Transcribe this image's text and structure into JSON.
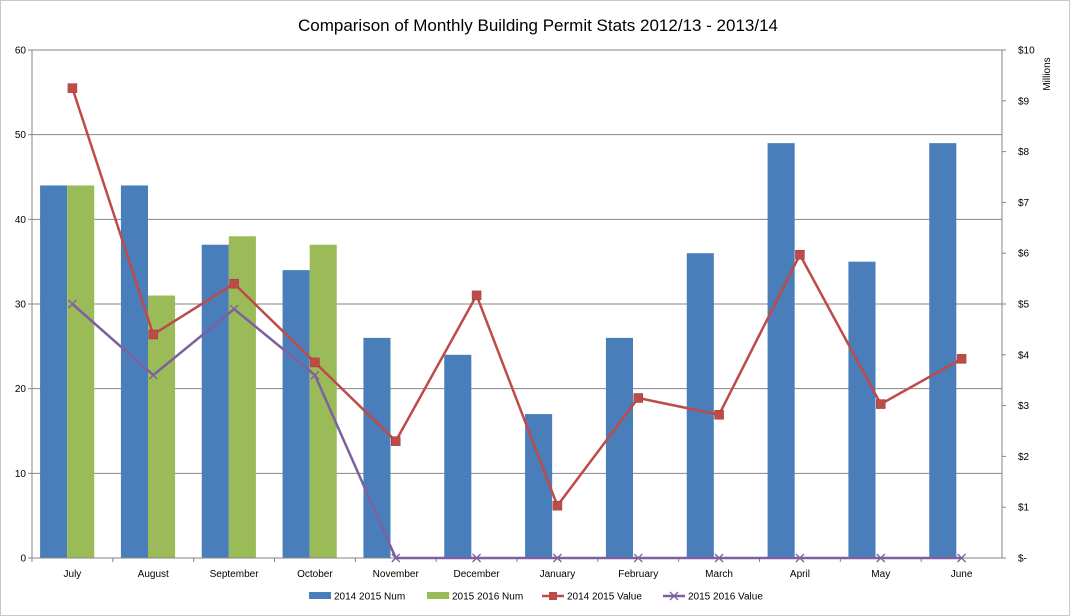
{
  "chart_data": {
    "type": "bar",
    "title": "Comparison of Monthly Building Permit Stats 2012/13 - 2013/14",
    "categories": [
      "July",
      "August",
      "September",
      "October",
      "November",
      "December",
      "January",
      "February",
      "March",
      "April",
      "May",
      "June"
    ],
    "y_left": {
      "ylim": [
        0,
        60
      ],
      "ticks": [
        0,
        10,
        20,
        30,
        40,
        50,
        60
      ],
      "tick_labels": [
        "0",
        "10",
        "20",
        "30",
        "40",
        "50",
        "60"
      ]
    },
    "y_right": {
      "label": "Millions",
      "ylim": [
        0,
        10
      ],
      "ticks": [
        0,
        1,
        2,
        3,
        4,
        5,
        6,
        7,
        8,
        9,
        10
      ],
      "tick_labels": [
        "$-",
        "$1",
        "$2",
        "$3",
        "$4",
        "$5",
        "$6",
        "$7",
        "$8",
        "$9",
        "$10"
      ]
    },
    "grid": true,
    "legend_position": "bottom",
    "series": [
      {
        "name": "2014 2015 Num",
        "kind": "bar",
        "axis": "left",
        "color": "#4a7ebb",
        "values": [
          44,
          44,
          37,
          34,
          26,
          24,
          17,
          26,
          36,
          49,
          35,
          49
        ]
      },
      {
        "name": "2015 2016 Num",
        "kind": "bar",
        "axis": "left",
        "color": "#9bbb59",
        "values": [
          44,
          31,
          38,
          37,
          null,
          null,
          null,
          null,
          null,
          null,
          null,
          null
        ]
      },
      {
        "name": "2014 2015 Value",
        "kind": "line",
        "marker": "square",
        "axis": "right",
        "color": "#be4b48",
        "values": [
          9.25,
          4.4,
          5.4,
          3.85,
          2.3,
          5.17,
          1.03,
          3.15,
          2.82,
          5.97,
          3.03,
          3.92
        ]
      },
      {
        "name": "2015 2016 Value",
        "kind": "line",
        "marker": "x",
        "axis": "right",
        "color": "#7d60a0",
        "values": [
          5.0,
          3.6,
          4.9,
          3.6,
          0,
          0,
          0,
          0,
          0,
          0,
          0,
          0
        ]
      }
    ]
  }
}
